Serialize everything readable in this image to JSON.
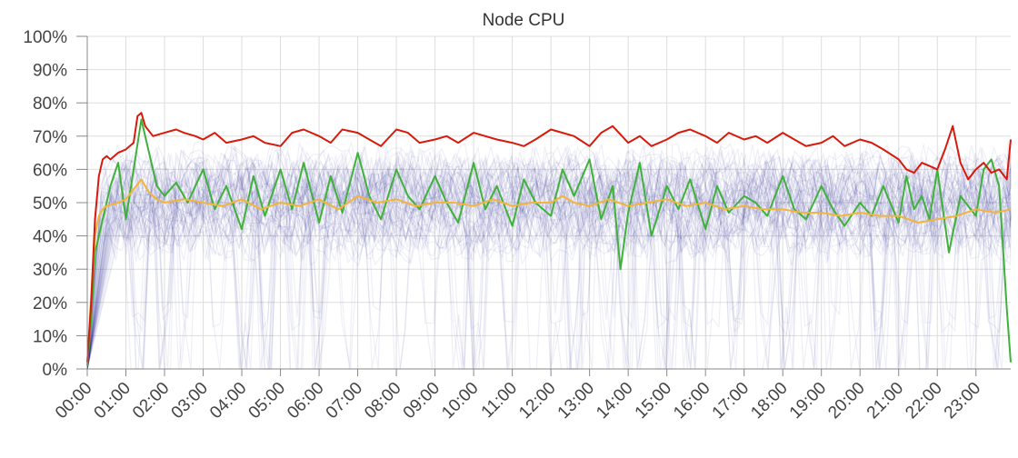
{
  "chart_data": {
    "type": "line",
    "title": "Node CPU",
    "xlabel": "",
    "ylabel": "",
    "x_tick_labels": [
      "00:00",
      "01:00",
      "02:00",
      "03:00",
      "04:00",
      "05:00",
      "06:00",
      "07:00",
      "08:00",
      "09:00",
      "10:00",
      "11:00",
      "12:00",
      "13:00",
      "14:00",
      "15:00",
      "16:00",
      "17:00",
      "18:00",
      "19:00",
      "20:00",
      "21:00",
      "22:00",
      "23:00"
    ],
    "y_tick_labels": [
      "0%",
      "10%",
      "20%",
      "30%",
      "40%",
      "50%",
      "60%",
      "70%",
      "80%",
      "90%",
      "100%"
    ],
    "xlim": [
      0,
      23.9
    ],
    "ylim": [
      0,
      100
    ],
    "grid": true,
    "legend": "none",
    "colors": {
      "max": "#d71a0b",
      "median": "#f2b43a",
      "highlight": "#3fb13a",
      "nodes": "#1e1a8c",
      "grid": "#dddddd",
      "axis": "#888888"
    },
    "series": [
      {
        "role": "max",
        "x": [
          0,
          0.1,
          0.2,
          0.3,
          0.4,
          0.5,
          0.6,
          0.8,
          1.0,
          1.2,
          1.3,
          1.4,
          1.5,
          1.7,
          2.0,
          2.3,
          2.5,
          2.8,
          3.0,
          3.3,
          3.6,
          4.0,
          4.3,
          4.6,
          5.0,
          5.3,
          5.6,
          6.0,
          6.3,
          6.6,
          7.0,
          7.3,
          7.6,
          8.0,
          8.3,
          8.6,
          9.0,
          9.3,
          9.6,
          10.0,
          10.3,
          10.6,
          11.0,
          11.3,
          11.6,
          12.0,
          12.3,
          12.6,
          13.0,
          13.3,
          13.6,
          14.0,
          14.3,
          14.6,
          15.0,
          15.3,
          15.6,
          16.0,
          16.3,
          16.6,
          17.0,
          17.3,
          17.6,
          18.0,
          18.3,
          18.6,
          19.0,
          19.3,
          19.6,
          20.0,
          20.3,
          20.6,
          21.0,
          21.2,
          21.4,
          21.6,
          21.8,
          22.0,
          22.2,
          22.4,
          22.6,
          22.8,
          23.0,
          23.2,
          23.4,
          23.6,
          23.8,
          23.9
        ],
        "y": [
          2,
          20,
          45,
          58,
          63,
          64,
          63,
          65,
          66,
          68,
          76,
          77,
          73,
          70,
          71,
          72,
          71,
          70,
          69,
          71,
          68,
          69,
          70,
          68,
          67,
          71,
          72,
          70,
          68,
          72,
          71,
          69,
          67,
          72,
          71,
          68,
          69,
          70,
          68,
          71,
          70,
          69,
          68,
          67,
          69,
          72,
          71,
          70,
          67,
          71,
          73,
          68,
          70,
          67,
          69,
          71,
          72,
          70,
          68,
          71,
          69,
          70,
          68,
          71,
          69,
          67,
          68,
          70,
          67,
          69,
          68,
          66,
          63,
          60,
          59,
          62,
          61,
          60,
          66,
          73,
          62,
          57,
          60,
          62,
          59,
          60,
          57,
          69
        ]
      },
      {
        "role": "median",
        "x": [
          0,
          0.1,
          0.2,
          0.3,
          0.4,
          0.5,
          0.8,
          1.0,
          1.2,
          1.4,
          1.6,
          1.8,
          2.0,
          2.5,
          3.0,
          3.5,
          4.0,
          4.5,
          5.0,
          5.5,
          6.0,
          6.5,
          7.0,
          7.5,
          8.0,
          8.5,
          9.0,
          9.5,
          10.0,
          10.5,
          11.0,
          11.5,
          12.0,
          12.3,
          12.6,
          13.0,
          13.5,
          14.0,
          14.5,
          15.0,
          15.5,
          16.0,
          16.5,
          17.0,
          17.5,
          18.0,
          18.5,
          19.0,
          19.5,
          20.0,
          20.5,
          21.0,
          21.5,
          22.0,
          22.5,
          23.0,
          23.5,
          23.9
        ],
        "y": [
          2,
          22,
          40,
          46,
          48,
          49,
          50,
          51,
          54,
          57,
          53,
          51,
          50,
          51,
          50,
          49,
          51,
          48,
          50,
          49,
          51,
          48,
          52,
          50,
          51,
          49,
          50,
          50,
          49,
          51,
          49,
          50,
          50,
          52,
          50,
          49,
          51,
          49,
          50,
          51,
          49,
          50,
          48,
          49,
          48,
          48,
          47,
          47,
          46,
          47,
          46,
          46,
          44,
          45,
          46,
          48,
          47,
          48
        ]
      },
      {
        "role": "highlight",
        "x": [
          0,
          0.1,
          0.2,
          0.3,
          0.4,
          0.6,
          0.8,
          1.0,
          1.2,
          1.4,
          1.6,
          1.8,
          2.0,
          2.3,
          2.6,
          3.0,
          3.3,
          3.6,
          4.0,
          4.3,
          4.6,
          5.0,
          5.3,
          5.6,
          6.0,
          6.3,
          6.6,
          7.0,
          7.3,
          7.6,
          8.0,
          8.3,
          8.6,
          9.0,
          9.3,
          9.6,
          10.0,
          10.3,
          10.6,
          11.0,
          11.3,
          11.6,
          12.0,
          12.3,
          12.6,
          13.0,
          13.3,
          13.6,
          13.8,
          14.0,
          14.3,
          14.6,
          15.0,
          15.3,
          15.6,
          16.0,
          16.3,
          16.6,
          17.0,
          17.3,
          17.6,
          18.0,
          18.3,
          18.6,
          19.0,
          19.3,
          19.6,
          20.0,
          20.3,
          20.6,
          21.0,
          21.2,
          21.4,
          21.6,
          21.8,
          22.0,
          22.3,
          22.6,
          23.0,
          23.2,
          23.4,
          23.6,
          23.8,
          23.9
        ],
        "y": [
          1,
          15,
          35,
          40,
          45,
          55,
          62,
          45,
          60,
          75,
          65,
          55,
          52,
          56,
          50,
          60,
          48,
          55,
          42,
          58,
          46,
          60,
          48,
          62,
          44,
          58,
          47,
          65,
          52,
          45,
          60,
          52,
          48,
          58,
          50,
          44,
          62,
          48,
          55,
          43,
          57,
          50,
          46,
          60,
          52,
          63,
          45,
          55,
          30,
          47,
          62,
          40,
          55,
          48,
          57,
          42,
          55,
          47,
          52,
          50,
          46,
          58,
          48,
          45,
          55,
          48,
          43,
          50,
          46,
          55,
          44,
          58,
          48,
          52,
          45,
          60,
          35,
          52,
          46,
          60,
          63,
          55,
          18,
          2
        ]
      },
      {
        "role": "nodes",
        "count": 60,
        "opacity_each": 0.07,
        "band_low": 40,
        "band_high": 60,
        "dropout_hours": [
          0.5,
          1.3,
          2.0,
          2.5,
          3.4,
          4.1,
          4.6,
          5.4,
          6.0,
          6.7,
          7.4,
          8.1,
          8.9,
          9.6,
          10.1,
          10.9,
          11.6,
          12.1,
          12.6,
          12.9,
          13.4,
          13.6,
          13.9,
          14.0,
          14.4,
          14.9,
          15.1,
          15.6,
          16.2,
          16.8,
          17.5,
          18.1,
          18.7,
          19.3,
          19.9,
          20.5,
          21.1,
          21.7,
          22.3,
          22.9,
          23.5
        ]
      }
    ]
  }
}
